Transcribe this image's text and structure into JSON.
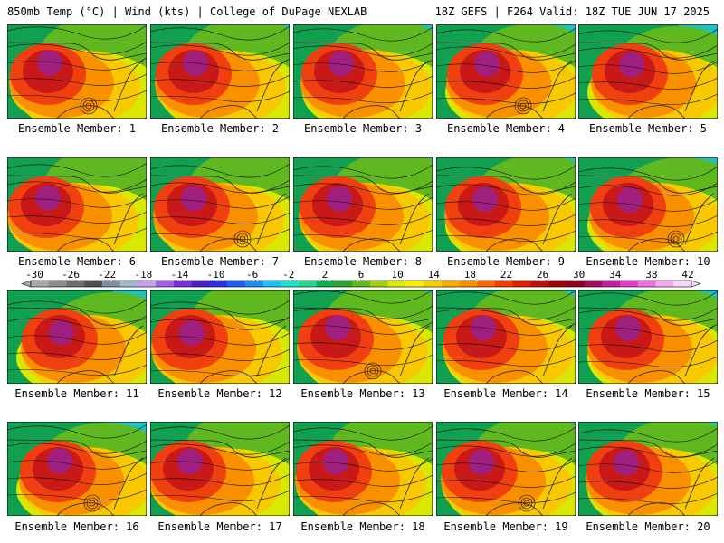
{
  "header": {
    "title_left": "850mb Temp (°C) | Wind (kts) | College of DuPage NEXLAB",
    "title_right": "18Z GEFS | F264 Valid: 18Z TUE JUN 17 2025"
  },
  "caption_prefix": "Ensemble Member: ",
  "members": [
    1,
    2,
    3,
    4,
    5,
    6,
    7,
    8,
    9,
    10,
    11,
    12,
    13,
    14,
    15,
    16,
    17,
    18,
    19,
    20
  ],
  "colorbar": {
    "labels": [
      "-30",
      "-26",
      "-22",
      "-18",
      "-14",
      "-10",
      "-6",
      "-2",
      "2",
      "6",
      "10",
      "14",
      "18",
      "22",
      "26",
      "30",
      "34",
      "38",
      "42"
    ],
    "colors": [
      "#a8a8a8",
      "#8c8c8c",
      "#6e6e6e",
      "#505050",
      "#7f8fa0",
      "#9fb7cf",
      "#c6a0e8",
      "#a060e0",
      "#7a2fd8",
      "#4a1fc8",
      "#2f2fe6",
      "#1e5ff0",
      "#1e90f0",
      "#20c0f0",
      "#20e0d0",
      "#20d890",
      "#10b050",
      "#30a030",
      "#60b820",
      "#a0d010",
      "#e0e800",
      "#f8f000",
      "#f8d000",
      "#f8b000",
      "#f89000",
      "#f86800",
      "#f04000",
      "#e02000",
      "#c01010",
      "#a00808",
      "#900020",
      "#a01060",
      "#c020a0",
      "#e040c8",
      "#f070e0",
      "#f8a8f0",
      "#f8d8f8"
    ]
  },
  "map_colors": {
    "hot_core": "#a02080",
    "very_hot": "#c81818",
    "hot": "#f04010",
    "warm": "#f89000",
    "mild": "#f8c800",
    "cool": "#d8e800",
    "cooler": "#60b820",
    "cold": "#10a050",
    "colder": "#20c0c0"
  }
}
